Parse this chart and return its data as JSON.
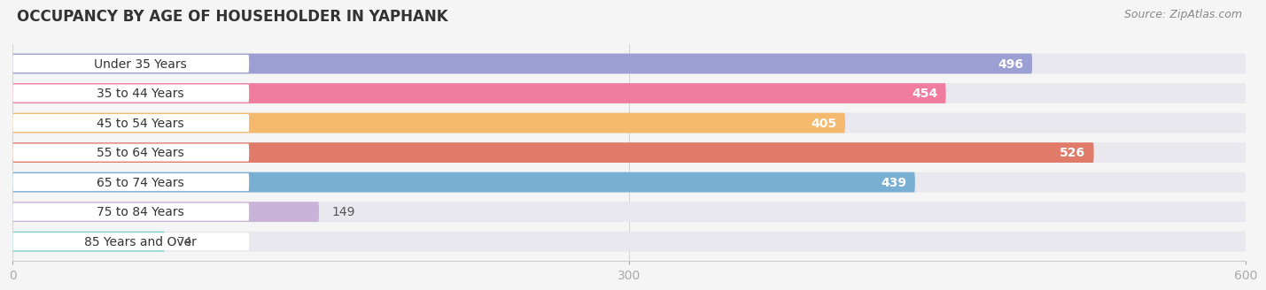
{
  "title": "OCCUPANCY BY AGE OF HOUSEHOLDER IN YAPHANK",
  "source": "Source: ZipAtlas.com",
  "categories": [
    "Under 35 Years",
    "35 to 44 Years",
    "45 to 54 Years",
    "55 to 64 Years",
    "65 to 74 Years",
    "75 to 84 Years",
    "85 Years and Over"
  ],
  "values": [
    496,
    454,
    405,
    526,
    439,
    149,
    74
  ],
  "bar_colors": [
    "#9b9fd4",
    "#f07ca0",
    "#f5b96e",
    "#e07b6a",
    "#7aafd4",
    "#c9b3d8",
    "#7ecece"
  ],
  "bar_bg_color": "#e8e8ee",
  "xlim_max": 600,
  "xticks": [
    0,
    300,
    600
  ],
  "bar_height": 0.68,
  "value_fontsize": 10,
  "label_fontsize": 10,
  "title_fontsize": 12,
  "fig_bg_color": "#f5f5f5",
  "label_threshold": 200
}
